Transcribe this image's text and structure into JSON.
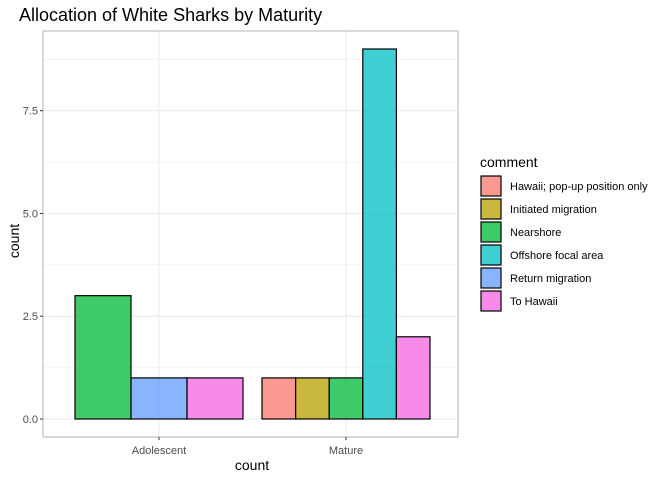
{
  "chart_data": {
    "type": "bar",
    "title": "Allocation of White Sharks by Maturity",
    "xlabel": "count",
    "ylabel": "count",
    "ylim": [
      0,
      9
    ],
    "yticks": [
      "0.0",
      "2.5",
      "5.0",
      "7.5"
    ],
    "grid": true,
    "legend": {
      "title": "comment",
      "position": "right"
    },
    "categories": [
      "Adolescent",
      "Mature"
    ],
    "series": [
      {
        "name": "Hawaii; pop-up position only",
        "color": "#F8766D",
        "values": [
          0,
          1
        ]
      },
      {
        "name": "Initiated migration",
        "color": "#B79F00",
        "values": [
          0,
          1
        ]
      },
      {
        "name": "Nearshore",
        "color": "#00BA38",
        "values": [
          3,
          1
        ]
      },
      {
        "name": "Offshore focal area",
        "color": "#00BFC4",
        "values": [
          0,
          9
        ]
      },
      {
        "name": "Return migration",
        "color": "#619CFF",
        "values": [
          1,
          0
        ]
      },
      {
        "name": "To Hawaii",
        "color": "#F564E3",
        "values": [
          1,
          2
        ]
      }
    ]
  }
}
